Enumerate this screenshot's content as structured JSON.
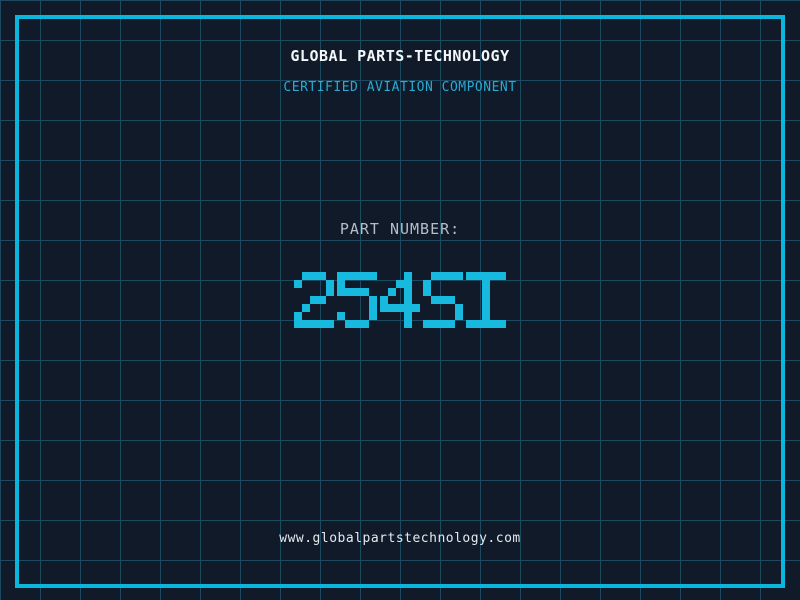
{
  "colors": {
    "background": "#101a29",
    "grid_line": "#1b4a63",
    "frame": "#0ab5de",
    "title": "#f4f7f9",
    "subtitle": "#2aa9d4",
    "label": "#b6bdc8",
    "part_number": "#17bade",
    "url": "#e4eaee"
  },
  "header": {
    "title": "GLOBAL PARTS-TECHNOLOGY",
    "subtitle": "CERTIFIED AVIATION COMPONENT"
  },
  "part": {
    "label": "PART NUMBER:",
    "number": "254SI"
  },
  "footer": {
    "url": "www.globalpartstechnology.com"
  }
}
